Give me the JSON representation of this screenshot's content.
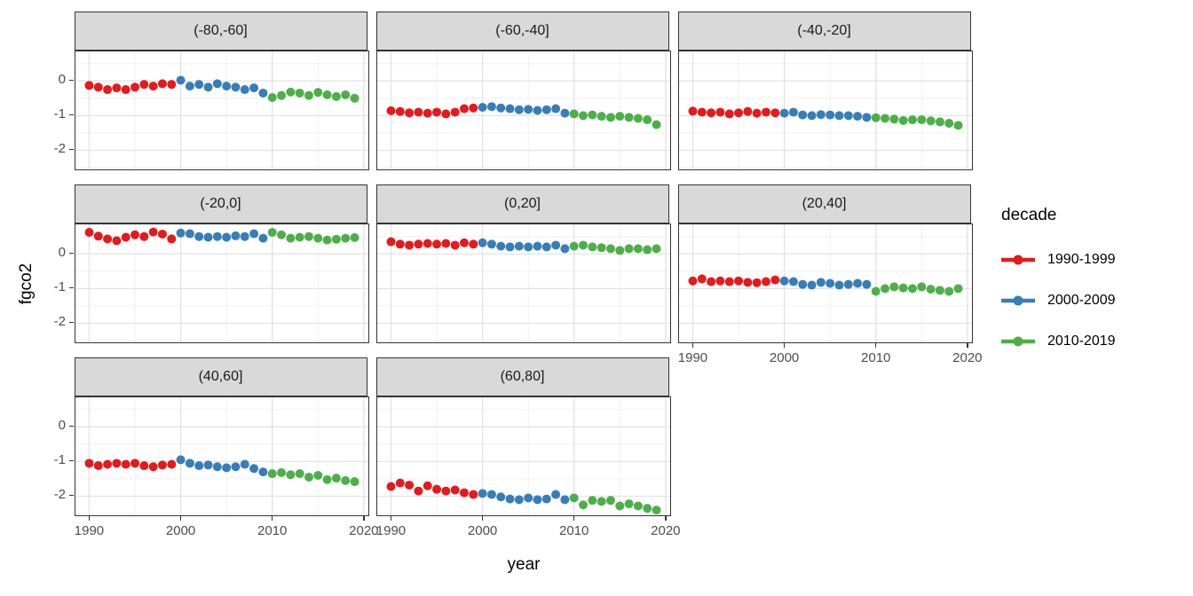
{
  "chart_data": {
    "type": "scatter",
    "title": "",
    "xlabel": "year",
    "ylabel": "fgco2",
    "facet_variable": "latitude band",
    "x": [
      1990,
      1991,
      1992,
      1993,
      1994,
      1995,
      1996,
      1997,
      1998,
      1999,
      2000,
      2001,
      2002,
      2003,
      2004,
      2005,
      2006,
      2007,
      2008,
      2009,
      2010,
      2011,
      2012,
      2013,
      2014,
      2015,
      2016,
      2017,
      2018,
      2019
    ],
    "x_ticks": [
      1990,
      2000,
      2010,
      2020
    ],
    "x_minor_ticks": [
      1995,
      2005,
      2015
    ],
    "y_ticks": [
      0,
      -1,
      -2
    ],
    "y_minor_ticks": [
      0.5,
      -0.5,
      -1.5,
      -2.5
    ],
    "xlim": [
      1988.5,
      2020.5
    ],
    "ylim": [
      -2.55,
      0.85
    ],
    "grid": true,
    "legend": {
      "title": "decade",
      "position": "right",
      "entries": [
        {
          "label": "1990-1999",
          "color": "#E41A1C"
        },
        {
          "label": "2000-2009",
          "color": "#377EB8"
        },
        {
          "label": "2010-2019",
          "color": "#4DAF4A"
        }
      ]
    },
    "facets": [
      {
        "label": "(-80,-60]",
        "values": [
          -0.13,
          -0.18,
          -0.25,
          -0.2,
          -0.25,
          -0.18,
          -0.1,
          -0.15,
          -0.08,
          -0.1,
          0.02,
          -0.15,
          -0.1,
          -0.18,
          -0.08,
          -0.15,
          -0.18,
          -0.25,
          -0.2,
          -0.35,
          -0.48,
          -0.42,
          -0.32,
          -0.35,
          -0.42,
          -0.33,
          -0.4,
          -0.45,
          -0.4,
          -0.5
        ]
      },
      {
        "label": "(-60,-40]",
        "values": [
          -0.86,
          -0.88,
          -0.92,
          -0.9,
          -0.93,
          -0.9,
          -0.95,
          -0.9,
          -0.8,
          -0.78,
          -0.76,
          -0.74,
          -0.78,
          -0.8,
          -0.83,
          -0.82,
          -0.85,
          -0.83,
          -0.8,
          -0.93,
          -0.95,
          -1.0,
          -0.98,
          -1.02,
          -1.05,
          -1.02,
          -1.05,
          -1.08,
          -1.12,
          -1.26
        ]
      },
      {
        "label": "(-40,-20]",
        "values": [
          -0.87,
          -0.9,
          -0.92,
          -0.9,
          -0.95,
          -0.92,
          -0.88,
          -0.93,
          -0.9,
          -0.92,
          -0.93,
          -0.9,
          -0.98,
          -1.0,
          -0.97,
          -0.98,
          -1.0,
          -1.0,
          -1.02,
          -1.05,
          -1.06,
          -1.08,
          -1.1,
          -1.14,
          -1.12,
          -1.12,
          -1.15,
          -1.18,
          -1.22,
          -1.28
        ]
      },
      {
        "label": "(-20,0]",
        "values": [
          0.62,
          0.51,
          0.43,
          0.38,
          0.48,
          0.55,
          0.5,
          0.63,
          0.57,
          0.43,
          0.6,
          0.58,
          0.5,
          0.48,
          0.5,
          0.48,
          0.52,
          0.5,
          0.58,
          0.45,
          0.62,
          0.55,
          0.45,
          0.48,
          0.5,
          0.45,
          0.4,
          0.42,
          0.45,
          0.47
        ]
      },
      {
        "label": "(0,20]",
        "values": [
          0.35,
          0.28,
          0.25,
          0.28,
          0.3,
          0.28,
          0.3,
          0.25,
          0.32,
          0.28,
          0.32,
          0.28,
          0.22,
          0.2,
          0.22,
          0.2,
          0.22,
          0.2,
          0.25,
          0.15,
          0.22,
          0.25,
          0.2,
          0.18,
          0.15,
          0.1,
          0.15,
          0.15,
          0.12,
          0.15
        ]
      },
      {
        "label": "(20,40]",
        "values": [
          -0.78,
          -0.72,
          -0.8,
          -0.78,
          -0.8,
          -0.78,
          -0.82,
          -0.83,
          -0.8,
          -0.75,
          -0.78,
          -0.8,
          -0.88,
          -0.9,
          -0.82,
          -0.85,
          -0.9,
          -0.88,
          -0.85,
          -0.88,
          -1.08,
          -1.0,
          -0.95,
          -0.98,
          -1.0,
          -0.95,
          -1.02,
          -1.05,
          -1.08,
          -1.0
        ]
      },
      {
        "label": "(40,60]",
        "values": [
          -1.05,
          -1.12,
          -1.08,
          -1.05,
          -1.08,
          -1.05,
          -1.12,
          -1.15,
          -1.1,
          -1.08,
          -0.95,
          -1.05,
          -1.12,
          -1.1,
          -1.15,
          -1.18,
          -1.15,
          -1.08,
          -1.2,
          -1.3,
          -1.35,
          -1.32,
          -1.38,
          -1.35,
          -1.45,
          -1.4,
          -1.52,
          -1.48,
          -1.55,
          -1.58
        ]
      },
      {
        "label": "(60,80]",
        "values": [
          -1.72,
          -1.62,
          -1.68,
          -1.85,
          -1.7,
          -1.8,
          -1.85,
          -1.82,
          -1.9,
          -1.95,
          -1.92,
          -1.95,
          -2.02,
          -2.08,
          -2.1,
          -2.05,
          -2.1,
          -2.08,
          -1.95,
          -2.1,
          -2.05,
          -2.25,
          -2.12,
          -2.15,
          -2.12,
          -2.28,
          -2.22,
          -2.28,
          -2.35,
          -2.4
        ]
      }
    ],
    "style": {
      "strip_bg": "#d9d9d9",
      "panel_border": "#333333",
      "grid_major": "#e3e3e3",
      "grid_minor": "#f0f0f0",
      "tick_label_color": "#4d4d4d"
    }
  }
}
